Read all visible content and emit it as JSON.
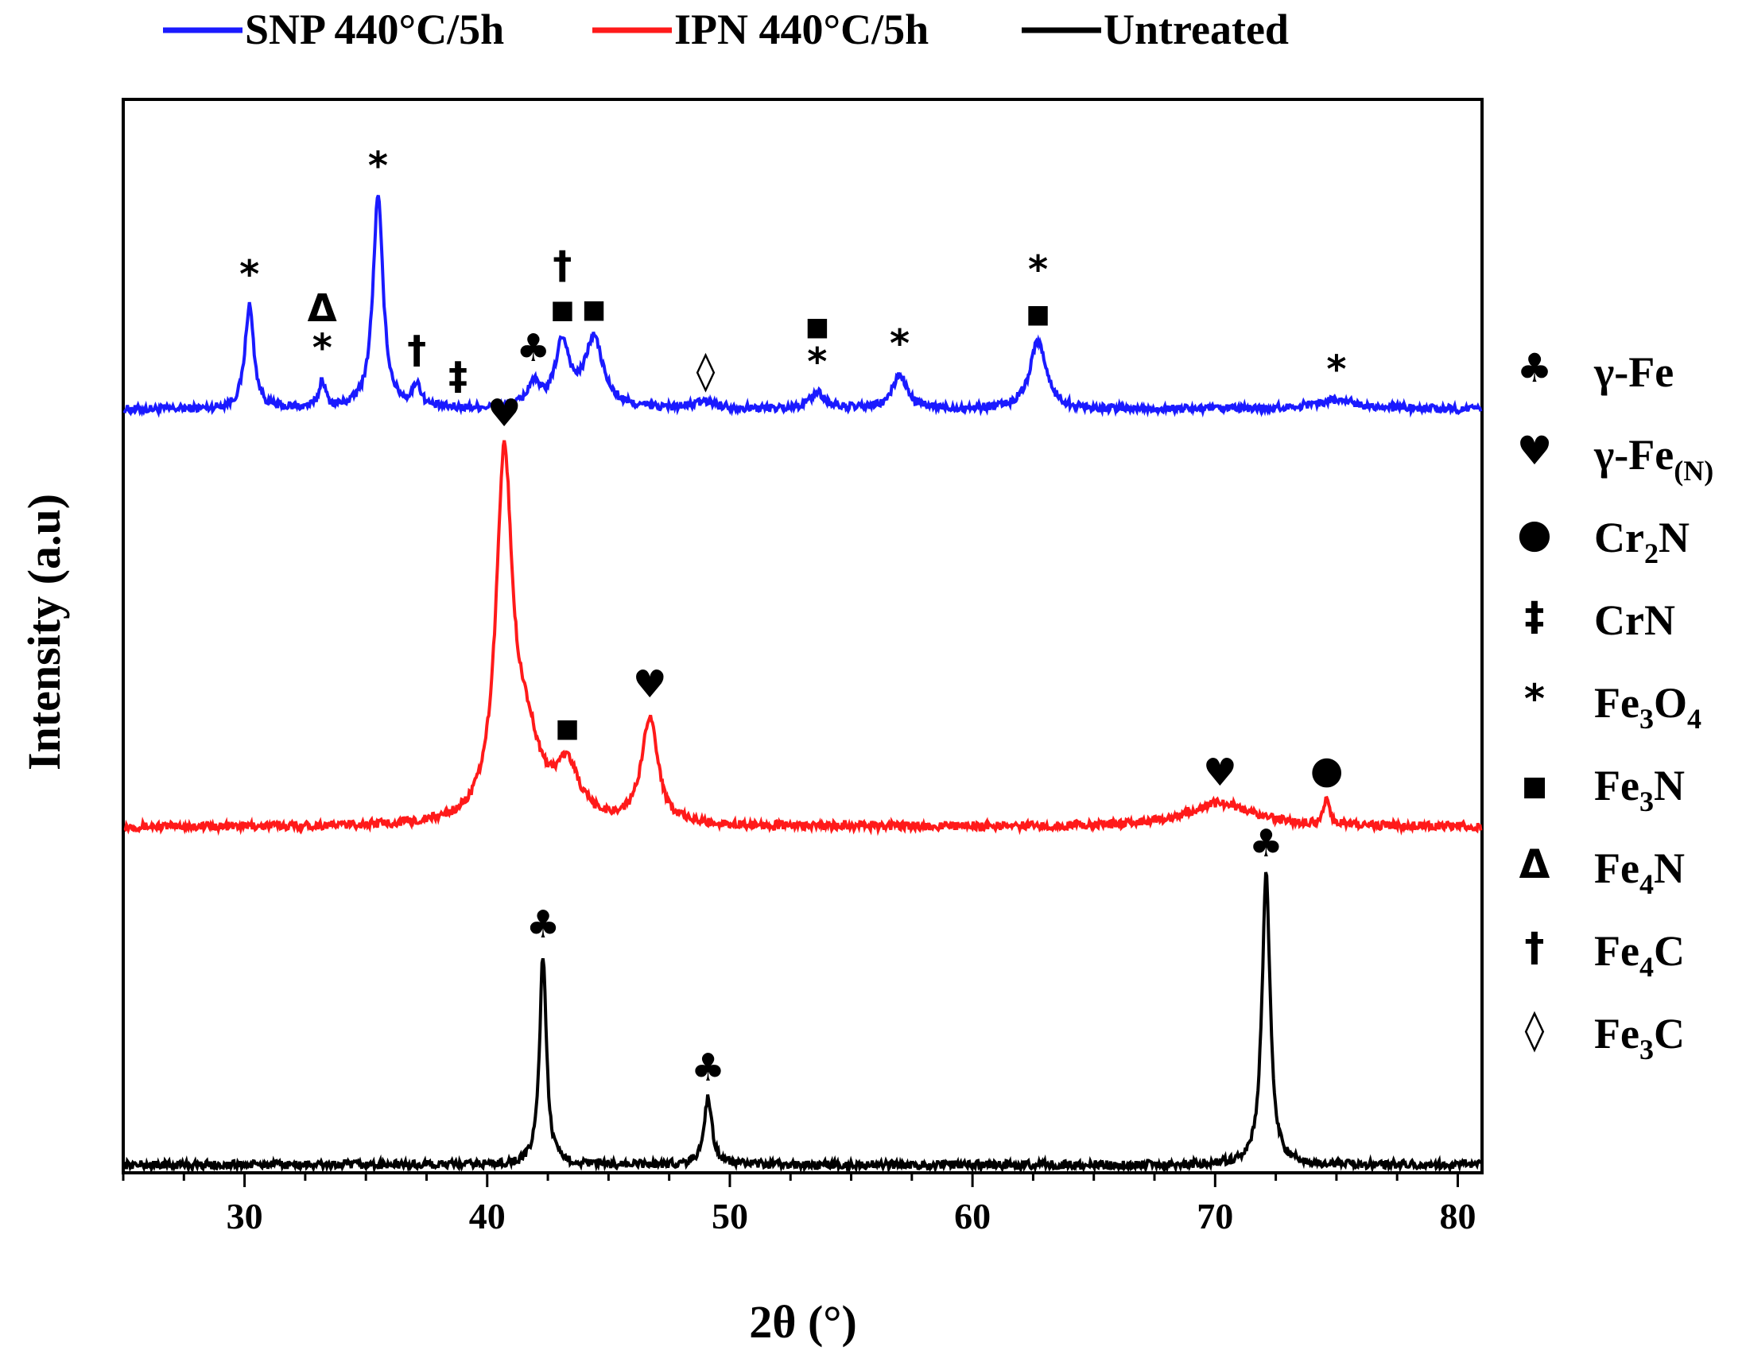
{
  "chart_data": {
    "type": "line",
    "title": "",
    "xlabel": "2θ (°)",
    "ylabel": "Intensity (a.u)",
    "xlim": [
      25,
      81
    ],
    "xticks": [
      30,
      40,
      50,
      60,
      70,
      80
    ],
    "xtick_labels": [
      "30",
      "40",
      "50",
      "60",
      "70",
      "80"
    ],
    "grid": false,
    "legend_position": "top",
    "series": [
      {
        "name": "SNP 440°C/5h",
        "color": "#1a1aff",
        "baseline": 0.0,
        "peaks": [
          {
            "x": 30.2,
            "h": 0.45,
            "w": 0.22
          },
          {
            "x": 33.2,
            "h": 0.12,
            "w": 0.15
          },
          {
            "x": 35.5,
            "h": 0.92,
            "w": 0.25
          },
          {
            "x": 37.1,
            "h": 0.1,
            "w": 0.2
          },
          {
            "x": 41.9,
            "h": 0.1,
            "w": 0.3
          },
          {
            "x": 43.1,
            "h": 0.28,
            "w": 0.35
          },
          {
            "x": 44.4,
            "h": 0.3,
            "w": 0.45
          },
          {
            "x": 49.0,
            "h": 0.03,
            "w": 0.6
          },
          {
            "x": 53.6,
            "h": 0.07,
            "w": 0.4
          },
          {
            "x": 57.0,
            "h": 0.15,
            "w": 0.35
          },
          {
            "x": 62.7,
            "h": 0.3,
            "w": 0.4
          },
          {
            "x": 75.0,
            "h": 0.04,
            "w": 1.2
          }
        ]
      },
      {
        "name": "IPN 440°C/5h",
        "color": "#ff1a1a",
        "baseline": 0.0,
        "peaks": [
          {
            "x": 40.7,
            "h": 1.48,
            "w": 0.4
          },
          {
            "x": 41.6,
            "h": 0.3,
            "w": 0.7
          },
          {
            "x": 43.3,
            "h": 0.22,
            "w": 0.6
          },
          {
            "x": 46.7,
            "h": 0.45,
            "w": 0.4
          },
          {
            "x": 70.2,
            "h": 0.1,
            "w": 1.6
          },
          {
            "x": 74.6,
            "h": 0.1,
            "w": 0.15
          }
        ]
      },
      {
        "name": "Untreated",
        "color": "#000000",
        "baseline": 0.0,
        "peaks": [
          {
            "x": 42.3,
            "h": 0.88,
            "w": 0.17
          },
          {
            "x": 49.1,
            "h": 0.28,
            "w": 0.2
          },
          {
            "x": 72.1,
            "h": 1.22,
            "w": 0.2
          }
        ]
      }
    ],
    "annotations": [
      {
        "series": "SNP 440°C/5h",
        "x": 30.2,
        "text": "*"
      },
      {
        "series": "SNP 440°C/5h",
        "x": 33.2,
        "text": "*"
      },
      {
        "series": "SNP 440°C/5h",
        "x": 33.2,
        "text": "Δ"
      },
      {
        "series": "SNP 440°C/5h",
        "x": 35.5,
        "text": "*"
      },
      {
        "series": "SNP 440°C/5h",
        "x": 37.1,
        "text": "†"
      },
      {
        "series": "SNP 440°C/5h",
        "x": 38.8,
        "text": "‡"
      },
      {
        "series": "SNP 440°C/5h",
        "x": 41.9,
        "text": "♣"
      },
      {
        "series": "SNP 440°C/5h",
        "x": 43.1,
        "text": "■"
      },
      {
        "series": "SNP 440°C/5h",
        "x": 43.1,
        "text": "†"
      },
      {
        "series": "SNP 440°C/5h",
        "x": 44.4,
        "text": "■"
      },
      {
        "series": "SNP 440°C/5h",
        "x": 49.0,
        "text": "◊"
      },
      {
        "series": "SNP 440°C/5h",
        "x": 53.6,
        "text": "*"
      },
      {
        "series": "SNP 440°C/5h",
        "x": 53.6,
        "text": "■"
      },
      {
        "series": "SNP 440°C/5h",
        "x": 57.0,
        "text": "*"
      },
      {
        "series": "SNP 440°C/5h",
        "x": 62.7,
        "text": "■"
      },
      {
        "series": "SNP 440°C/5h",
        "x": 62.7,
        "text": "*"
      },
      {
        "series": "SNP 440°C/5h",
        "x": 75.0,
        "text": "*"
      },
      {
        "series": "IPN 440°C/5h",
        "x": 40.7,
        "text": "♥"
      },
      {
        "series": "IPN 440°C/5h",
        "x": 43.3,
        "text": "■"
      },
      {
        "series": "IPN 440°C/5h",
        "x": 46.7,
        "text": "♥"
      },
      {
        "series": "IPN 440°C/5h",
        "x": 70.2,
        "text": "♥"
      },
      {
        "series": "IPN 440°C/5h",
        "x": 74.6,
        "text": "●"
      },
      {
        "series": "Untreated",
        "x": 42.3,
        "text": "♣"
      },
      {
        "series": "Untreated",
        "x": 49.1,
        "text": "♣"
      },
      {
        "series": "Untreated",
        "x": 72.1,
        "text": "♣"
      }
    ],
    "phase_legend": [
      {
        "symbol": "♣",
        "label": "γ-Fe",
        "sub": ""
      },
      {
        "symbol": "♥",
        "label": "γ-Fe",
        "sub": "(N)"
      },
      {
        "symbol": "●",
        "label": "Cr",
        "sub": "2",
        "label2": "N"
      },
      {
        "symbol": "‡",
        "label": "CrN",
        "sub": ""
      },
      {
        "symbol": "*",
        "label": "Fe",
        "sub": "3",
        "label2": "O",
        "sub2": "4"
      },
      {
        "symbol": "■",
        "label": "Fe",
        "sub": "3",
        "label2": "N"
      },
      {
        "symbol": "Δ",
        "label": "Fe",
        "sub": "4",
        "label2": "N"
      },
      {
        "symbol": "†",
        "label": "Fe",
        "sub": "4",
        "label2": "C"
      },
      {
        "symbol": "◊",
        "label": "Fe",
        "sub": "3",
        "label2": "C"
      }
    ]
  }
}
